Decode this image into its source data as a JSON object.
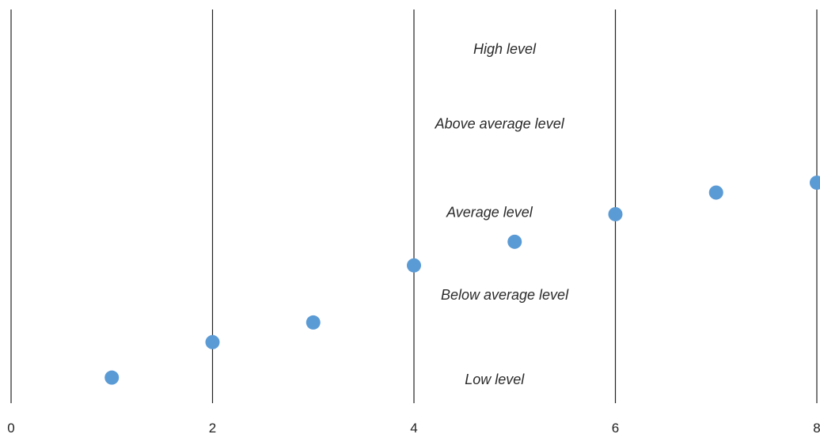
{
  "chart_data": {
    "type": "scatter",
    "title": "",
    "xlabel": "",
    "ylabel": "",
    "xlim": [
      0,
      8
    ],
    "ylim": [
      0,
      10
    ],
    "xticks": [
      "0",
      "2",
      "4",
      "6",
      "8"
    ],
    "x_gridlines": [
      0,
      2,
      4,
      6,
      8
    ],
    "grid": "vertical",
    "series": [
      {
        "color": "#5b9bd5",
        "points": [
          {
            "x": 1,
            "y": 0.65
          },
          {
            "x": 2,
            "y": 1.55
          },
          {
            "x": 3,
            "y": 2.05
          },
          {
            "x": 4,
            "y": 3.5
          },
          {
            "x": 5,
            "y": 4.1
          },
          {
            "x": 6,
            "y": 4.8
          },
          {
            "x": 7,
            "y": 5.35
          },
          {
            "x": 8,
            "y": 5.6
          }
        ]
      }
    ],
    "band_labels": [
      {
        "text": "High level",
        "x": 4.9,
        "y": 9.0
      },
      {
        "text": "Above average level",
        "x": 4.85,
        "y": 7.1
      },
      {
        "text": "Average level",
        "x": 4.75,
        "y": 4.85
      },
      {
        "text": "Below average level",
        "x": 4.9,
        "y": 2.75
      },
      {
        "text": "Low level",
        "x": 4.8,
        "y": 0.6
      }
    ]
  }
}
